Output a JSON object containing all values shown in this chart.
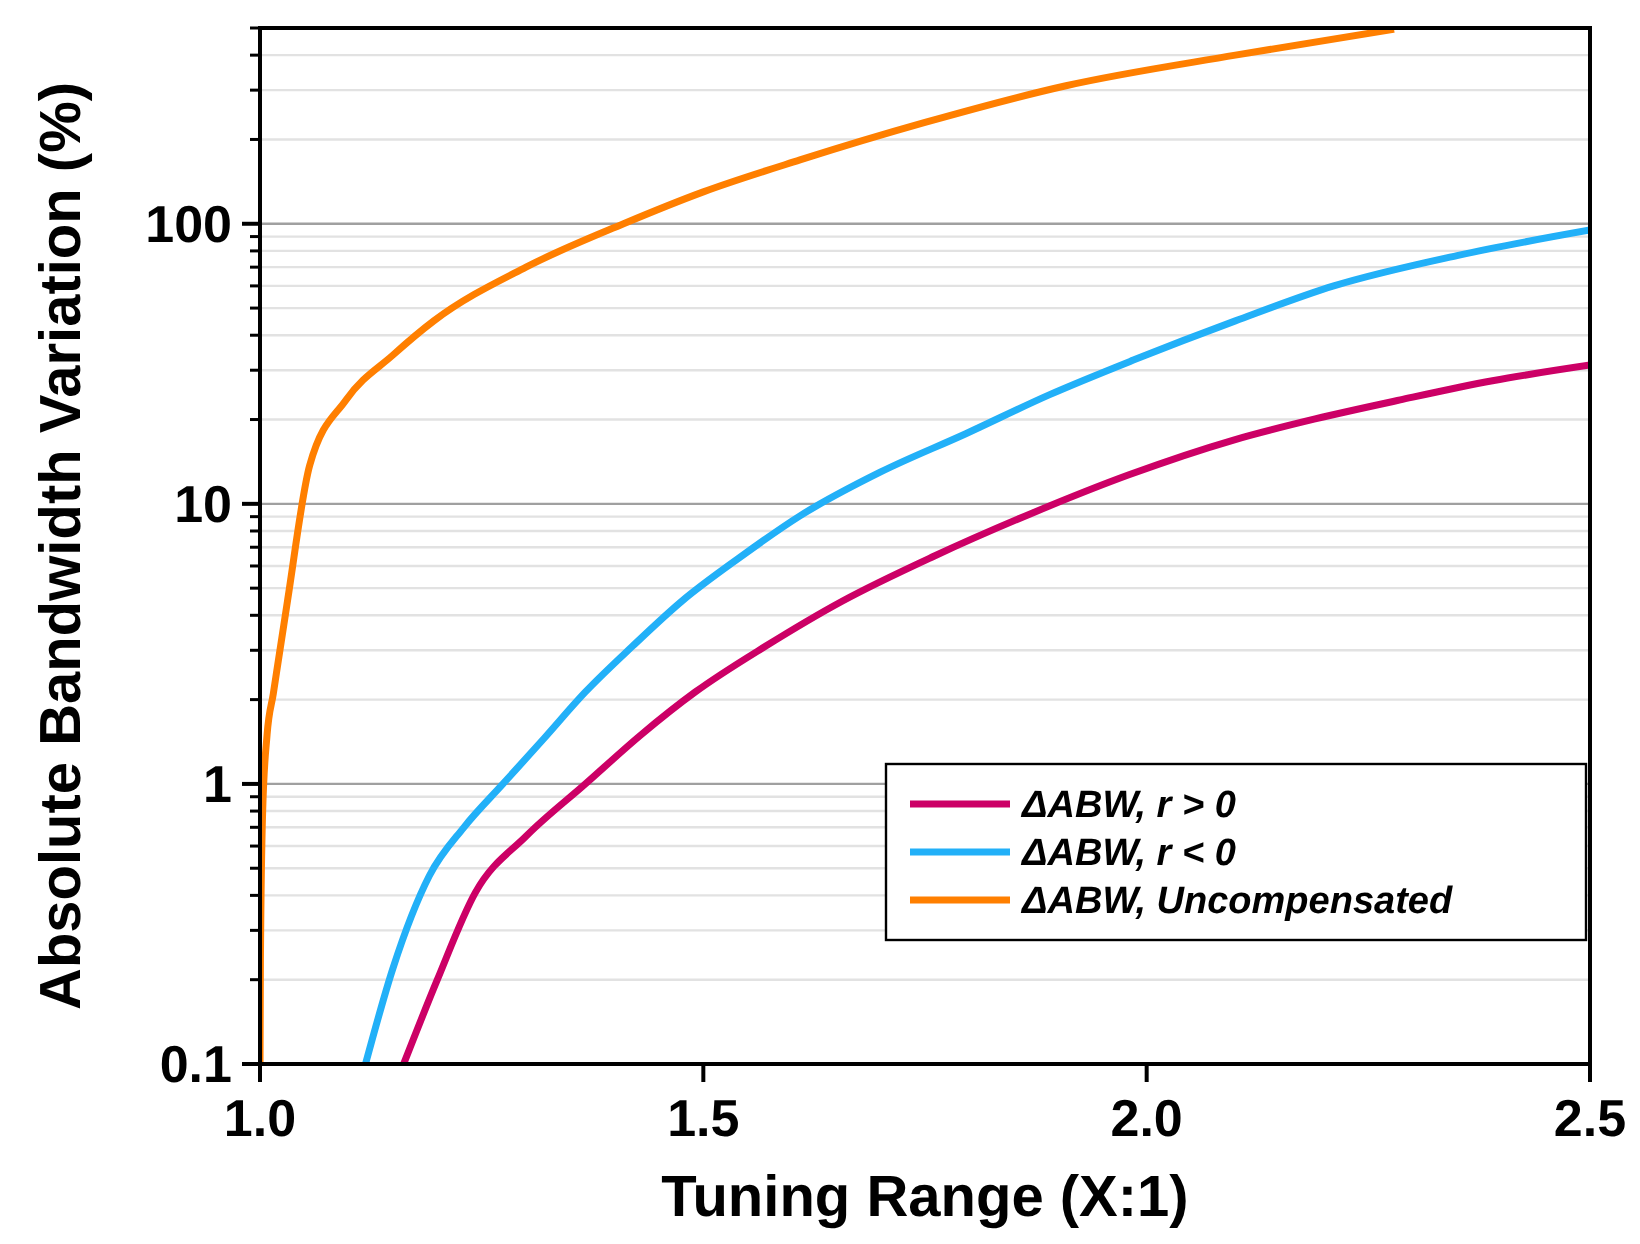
{
  "chart_data": {
    "type": "line",
    "xlabel": "Tuning Range (X:1)",
    "ylabel": "Absolute Bandwidth Variation (%)",
    "log": "y",
    "grid": "y",
    "legend": "bottom right",
    "line_style": "solid",
    "marker": "none",
    "xlim": [
      1.0,
      2.5
    ],
    "xticks": [
      {
        "value": 1.0,
        "label": "1.0"
      },
      1.5,
      {
        "value": 2.0,
        "label": "2.0"
      },
      2.5
    ],
    "ylim": [
      0.1,
      500
    ],
    "yticks": [
      0.1,
      1,
      10,
      100
    ],
    "series": [
      {
        "name": "ΔABW, r > 0",
        "color": "#cc0066",
        "x": [
          1.162,
          1.2,
          1.243,
          1.3,
          1.367,
          1.43,
          1.491,
          1.57,
          1.657,
          1.76,
          1.872,
          1.98,
          2.098,
          2.19,
          2.286,
          2.39,
          2.5
        ],
        "values": [
          0.1,
          0.2,
          0.41,
          0.65,
          1,
          1.5,
          2.13,
          3.1,
          4.5,
          6.5,
          9.3,
          12.7,
          16.9,
          20.1,
          23.5,
          27.5,
          31.3
        ]
      },
      {
        "name": "ΔABW, r < 0",
        "color": "#22b0f8",
        "x": [
          1.119,
          1.15,
          1.191,
          1.23,
          1.274,
          1.32,
          1.367,
          1.42,
          1.476,
          1.54,
          1.609,
          1.7,
          1.796,
          1.89,
          1.985,
          2.1,
          2.211,
          2.35,
          2.5
        ],
        "values": [
          0.1,
          0.22,
          0.47,
          0.7,
          1,
          1.45,
          2.13,
          3.1,
          4.5,
          6.4,
          9.06,
          13,
          17.8,
          24.5,
          32.6,
          45,
          60,
          77,
          95
        ]
      },
      {
        "name": "ΔABW, Uncompensated",
        "color": "#ff7f00",
        "x": [
          1.0,
          1.0005,
          1.003,
          1.008,
          1.015,
          1.031,
          1.056,
          1.097,
          1.15,
          1.196,
          1.3,
          1.41,
          1.5,
          1.609,
          1.75,
          1.909,
          2.1,
          2.279
        ],
        "values": [
          0.1,
          0.24,
          0.8,
          1.5,
          2.1,
          4.5,
          13.7,
          23.5,
          34,
          45,
          70,
          100,
          130,
          169,
          230,
          311,
          400,
          495
        ]
      }
    ]
  }
}
